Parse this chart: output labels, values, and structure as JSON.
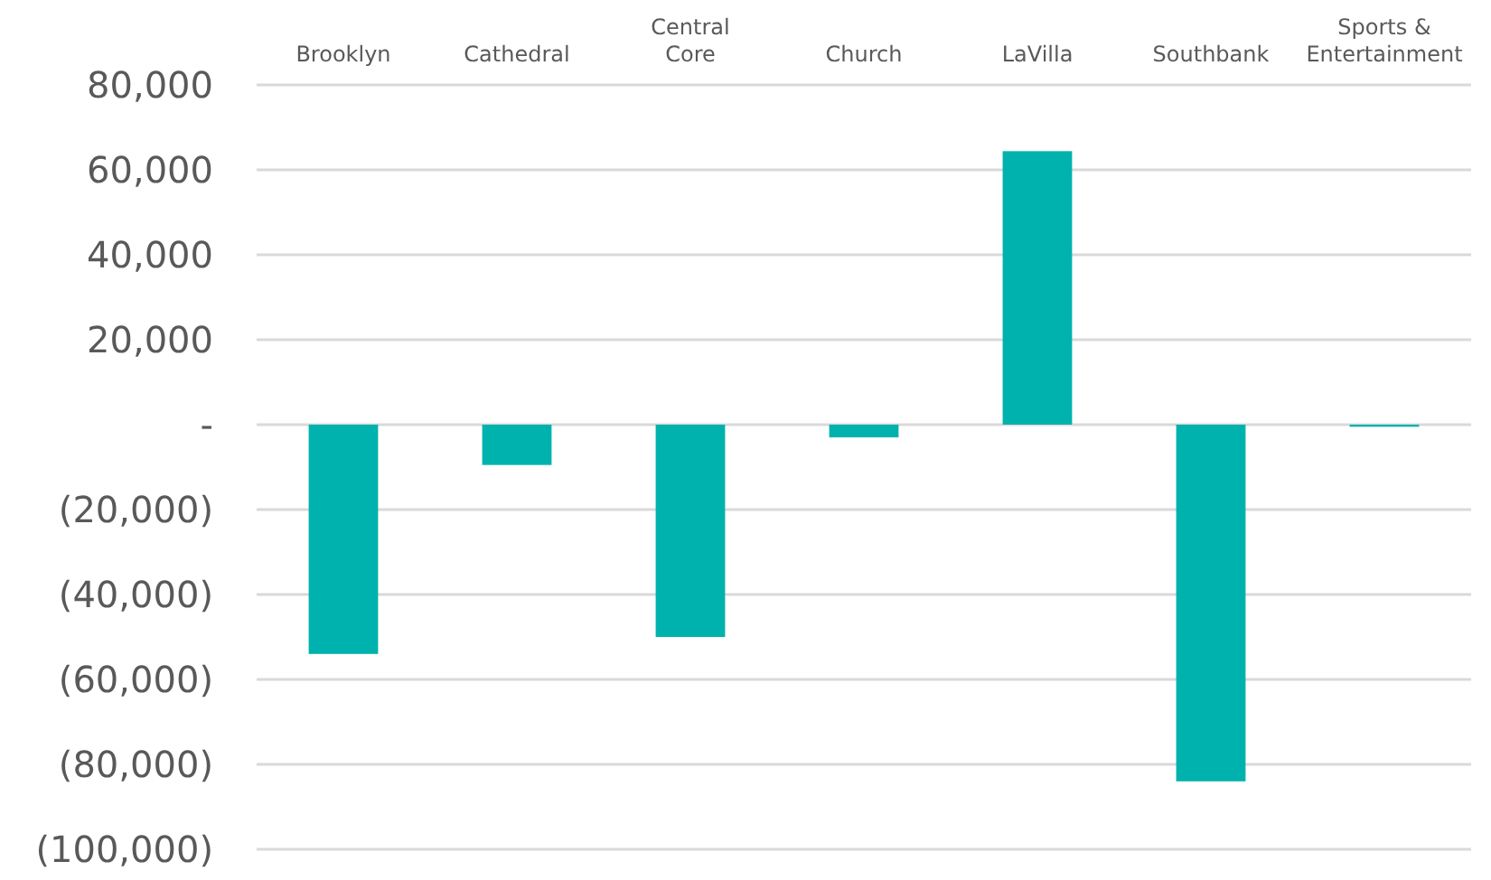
{
  "chart_data": {
    "type": "bar",
    "categories": [
      "Brooklyn",
      "Cathedral",
      "Central Core",
      "Church",
      "LaVilla",
      "Southbank",
      "Sports & Entertainment"
    ],
    "values": [
      -54000,
      -9500,
      -50000,
      -3000,
      64400,
      -84000,
      -500
    ],
    "color": "#00b2ad",
    "ylim": [
      -100000,
      80000
    ],
    "yticks": [
      {
        "value": 80000,
        "label": "80,000"
      },
      {
        "value": 60000,
        "label": "60,000"
      },
      {
        "value": 40000,
        "label": "40,000"
      },
      {
        "value": 20000,
        "label": "20,000"
      },
      {
        "value": 0,
        "label": "-"
      },
      {
        "value": -20000,
        "label": "(20,000)"
      },
      {
        "value": -40000,
        "label": "(40,000)"
      },
      {
        "value": -60000,
        "label": "(60,000)"
      },
      {
        "value": -80000,
        "label": "(80,000)"
      },
      {
        "value": -100000,
        "label": "(100,000)"
      }
    ],
    "grid": "y"
  }
}
